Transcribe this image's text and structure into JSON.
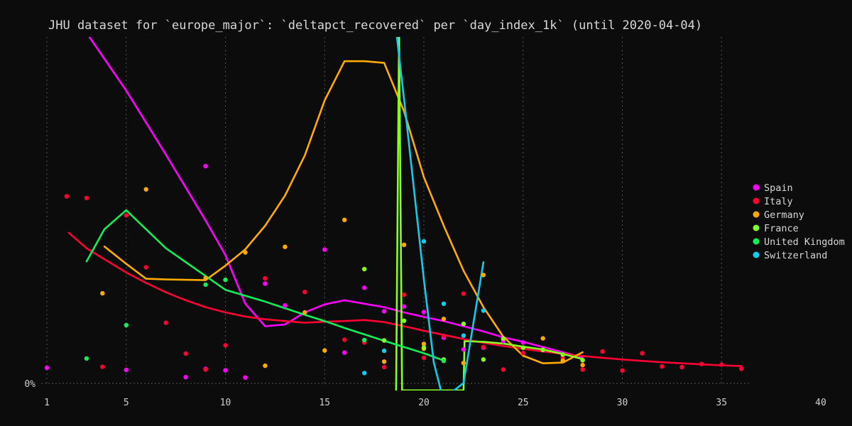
{
  "chart_data": {
    "type": "scatter",
    "title": "JHU dataset for `europe_major`: `deltapct_recovered` per `day_index_1k` (until 2020-04-04)",
    "xlabel": "",
    "ylabel": "",
    "xlim": [
      1,
      40
    ],
    "ylim": [
      0,
      1
    ],
    "x_ticks": [
      1,
      5,
      10,
      15,
      20,
      25,
      30,
      35,
      40
    ],
    "x_tick_labels": [
      "1",
      "5",
      "10",
      "15",
      "20",
      "25",
      "30",
      "35",
      "40"
    ],
    "y_tick_labels": [
      "0%"
    ],
    "grid": "vertical dotted",
    "legend_position": "right",
    "series": [
      {
        "name": "Spain",
        "color": "#ff00ff",
        "points": [
          [
            1,
            0.045
          ],
          [
            5,
            0.039
          ],
          [
            8,
            0.018
          ],
          [
            9,
            0.627
          ],
          [
            9,
            0.042
          ],
          [
            10,
            0.038
          ],
          [
            11,
            0.017
          ],
          [
            12,
            0.288
          ],
          [
            13,
            0.225
          ],
          [
            15,
            0.386
          ],
          [
            16,
            0.089
          ],
          [
            17,
            0.276
          ],
          [
            18,
            0.208
          ],
          [
            19,
            0.222
          ],
          [
            20,
            0.206
          ],
          [
            21,
            0.132
          ],
          [
            22,
            0.098
          ],
          [
            23,
            0.103
          ],
          [
            24,
            0.122
          ],
          [
            25,
            0.118
          ],
          [
            26,
            0.096
          ],
          [
            27,
            0.082
          ],
          [
            28,
            0.067
          ]
        ],
        "trend": [
          [
            2.9,
            1.02
          ],
          [
            5,
            0.845
          ],
          [
            7,
            0.66
          ],
          [
            9,
            0.47
          ],
          [
            10,
            0.37
          ],
          [
            11,
            0.23
          ],
          [
            12,
            0.165
          ],
          [
            13,
            0.17
          ],
          [
            14,
            0.205
          ],
          [
            15,
            0.228
          ],
          [
            16,
            0.24
          ],
          [
            17,
            0.23
          ],
          [
            18,
            0.22
          ],
          [
            19,
            0.205
          ],
          [
            20,
            0.192
          ],
          [
            21,
            0.18
          ],
          [
            22,
            0.165
          ],
          [
            23,
            0.15
          ],
          [
            24,
            0.133
          ],
          [
            25,
            0.12
          ],
          [
            26,
            0.105
          ],
          [
            27,
            0.09
          ],
          [
            28,
            0.075
          ]
        ]
      },
      {
        "name": "Italy",
        "color": "#ff0033",
        "points": [
          [
            2,
            0.54
          ],
          [
            3,
            0.535
          ],
          [
            3.8,
            0.048
          ],
          [
            5,
            0.485
          ],
          [
            6,
            0.335
          ],
          [
            7,
            0.175
          ],
          [
            8,
            0.086
          ],
          [
            9,
            0.04
          ],
          [
            10,
            0.11
          ],
          [
            12,
            0.303
          ],
          [
            14,
            0.264
          ],
          [
            16,
            0.126
          ],
          [
            17,
            0.118
          ],
          [
            18,
            0.047
          ],
          [
            19,
            0.256
          ],
          [
            20,
            0.074
          ],
          [
            21,
            0.137
          ],
          [
            22,
            0.259
          ],
          [
            23,
            0.105
          ],
          [
            24,
            0.04
          ],
          [
            25,
            0.088
          ],
          [
            27,
            0.074
          ],
          [
            28,
            0.04
          ],
          [
            29,
            0.092
          ],
          [
            30,
            0.037
          ],
          [
            31,
            0.087
          ],
          [
            32,
            0.049
          ],
          [
            33,
            0.047
          ],
          [
            34,
            0.056
          ],
          [
            35,
            0.054
          ],
          [
            36,
            0.042
          ]
        ],
        "trend": [
          [
            2.1,
            0.435
          ],
          [
            3,
            0.39
          ],
          [
            4,
            0.355
          ],
          [
            5,
            0.32
          ],
          [
            6,
            0.29
          ],
          [
            7,
            0.263
          ],
          [
            8,
            0.24
          ],
          [
            9,
            0.22
          ],
          [
            10,
            0.205
          ],
          [
            11,
            0.193
          ],
          [
            12,
            0.185
          ],
          [
            13,
            0.18
          ],
          [
            14,
            0.175
          ],
          [
            15,
            0.178
          ],
          [
            16,
            0.18
          ],
          [
            17,
            0.183
          ],
          [
            18,
            0.177
          ],
          [
            19,
            0.165
          ],
          [
            20,
            0.152
          ],
          [
            21,
            0.14
          ],
          [
            22,
            0.128
          ],
          [
            23,
            0.117
          ],
          [
            24,
            0.108
          ],
          [
            25,
            0.1
          ],
          [
            26,
            0.092
          ],
          [
            27,
            0.085
          ],
          [
            28,
            0.079
          ],
          [
            29,
            0.074
          ],
          [
            30,
            0.069
          ],
          [
            31,
            0.065
          ],
          [
            32,
            0.061
          ],
          [
            33,
            0.058
          ],
          [
            34,
            0.055
          ],
          [
            35,
            0.052
          ],
          [
            36,
            0.05
          ]
        ]
      },
      {
        "name": "Germany",
        "color": "#ffaa00",
        "points": [
          [
            3.8,
            0.26
          ],
          [
            6,
            0.56
          ],
          [
            9,
            0.304
          ],
          [
            11,
            0.378
          ],
          [
            12,
            0.051
          ],
          [
            13,
            0.394
          ],
          [
            14,
            0.205
          ],
          [
            15,
            0.095
          ],
          [
            16,
            0.472
          ],
          [
            18,
            0.063
          ],
          [
            19,
            0.4
          ],
          [
            20,
            0.114
          ],
          [
            20,
            0.1
          ],
          [
            21,
            0.186
          ],
          [
            22,
            0.059
          ],
          [
            23,
            0.313
          ],
          [
            26,
            0.13
          ],
          [
            27,
            0.066
          ],
          [
            28,
            0.053
          ]
        ],
        "trend": [
          [
            3.9,
            0.395
          ],
          [
            5,
            0.345
          ],
          [
            6,
            0.302
          ],
          [
            7,
            0.3
          ],
          [
            8,
            0.299
          ],
          [
            9,
            0.298
          ],
          [
            10,
            0.34
          ],
          [
            11,
            0.387
          ],
          [
            12,
            0.455
          ],
          [
            13,
            0.542
          ],
          [
            14,
            0.658
          ],
          [
            15,
            0.817
          ],
          [
            16,
            0.93
          ],
          [
            17,
            0.93
          ],
          [
            18,
            0.925
          ],
          [
            19,
            0.785
          ],
          [
            20,
            0.595
          ],
          [
            21,
            0.455
          ],
          [
            22,
            0.325
          ],
          [
            23,
            0.22
          ],
          [
            24,
            0.135
          ],
          [
            25,
            0.08
          ],
          [
            26,
            0.058
          ],
          [
            27,
            0.06
          ],
          [
            28,
            0.09
          ]
        ]
      },
      {
        "name": "France",
        "color": "#88ff22",
        "points": [
          [
            17,
            0.33
          ],
          [
            18,
            0.124
          ],
          [
            19,
            0.181
          ],
          [
            20,
            0.103
          ],
          [
            21,
            0.069
          ],
          [
            22,
            0.172
          ],
          [
            23,
            0.069
          ],
          [
            24,
            0.129
          ],
          [
            25,
            0.103
          ],
          [
            26,
            0.097
          ],
          [
            27,
            0.083
          ],
          [
            28,
            0.067
          ]
        ],
        "trend": [
          [
            18.6,
            -0.02
          ],
          [
            18.75,
            1.02
          ],
          [
            18.9,
            -0.02
          ],
          [
            22,
            -0.02
          ],
          [
            22.05,
            0.122
          ],
          [
            23,
            0.12
          ],
          [
            24,
            0.115
          ],
          [
            25,
            0.106
          ],
          [
            26,
            0.098
          ],
          [
            27,
            0.085
          ],
          [
            28,
            0.07
          ]
        ]
      },
      {
        "name": "United Kingdom",
        "color": "#11ee55",
        "points": [
          [
            3,
            0.072
          ],
          [
            5,
            0.168
          ],
          [
            9,
            0.285
          ],
          [
            10,
            0.299
          ],
          [
            17,
            0.125
          ],
          [
            21,
            0.065
          ]
        ],
        "trend": [
          [
            3,
            0.352
          ],
          [
            3.9,
            0.445
          ],
          [
            5,
            0.5
          ],
          [
            7,
            0.39
          ],
          [
            9,
            0.31
          ],
          [
            10,
            0.27
          ],
          [
            12,
            0.236
          ],
          [
            14,
            0.198
          ],
          [
            15,
            0.18
          ],
          [
            16,
            0.16
          ],
          [
            18,
            0.123
          ],
          [
            20,
            0.087
          ],
          [
            21,
            0.066
          ]
        ]
      },
      {
        "name": "Switzerland",
        "color": "#11ccee",
        "points": [
          [
            17,
            0.03
          ],
          [
            18,
            0.094
          ],
          [
            20,
            0.41
          ],
          [
            21,
            0.23
          ],
          [
            22,
            0.138
          ],
          [
            23,
            0.21
          ]
        ],
        "trend": [
          [
            18.6,
            1.02
          ],
          [
            19,
            0.82
          ],
          [
            20,
            0.3
          ],
          [
            20.5,
            0.06
          ],
          [
            20.9,
            -0.03
          ],
          [
            21.3,
            -0.03
          ],
          [
            22,
            0.001
          ],
          [
            23,
            0.35
          ]
        ]
      }
    ]
  }
}
